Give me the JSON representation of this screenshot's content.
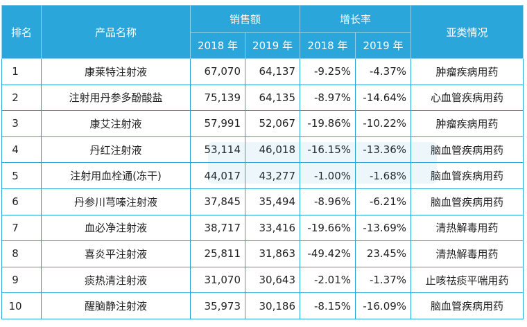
{
  "header": {
    "rank": "排名",
    "name": "产品名称",
    "sales": "销售额",
    "growth": "增长率",
    "category": "亚类情况",
    "year2018": "2018 年",
    "year2019": "2019 年"
  },
  "rows": [
    {
      "rank": "1",
      "name": "康莱特注射液",
      "s2018": "67,070",
      "s2019": "64,137",
      "g2018": "-9.25%",
      "g2019": "-4.37%",
      "category": "肿瘤疾病用药"
    },
    {
      "rank": "2",
      "name": "注射用丹参多酚酸盐",
      "s2018": "75,139",
      "s2019": "64,135",
      "g2018": "-8.97%",
      "g2019": "-14.64%",
      "category": "心血管疾病用药"
    },
    {
      "rank": "3",
      "name": "康艾注射液",
      "s2018": "57,991",
      "s2019": "52,067",
      "g2018": "-19.86%",
      "g2019": "-10.22%",
      "category": "肿瘤疾病用药"
    },
    {
      "rank": "4",
      "name": "丹红注射液",
      "s2018": "53,114",
      "s2019": "46,018",
      "g2018": "-16.15%",
      "g2019": "-13.36%",
      "category": "脑血管疾病用药"
    },
    {
      "rank": "5",
      "name": "注射用血栓通(冻干)",
      "s2018": "44,017",
      "s2019": "43,277",
      "g2018": "-1.00%",
      "g2019": "-1.68%",
      "category": "脑血管疾病用药"
    },
    {
      "rank": "6",
      "name": "丹参川芎嗪注射液",
      "s2018": "37,845",
      "s2019": "35,494",
      "g2018": "-8.96%",
      "g2019": "-6.21%",
      "category": "脑血管疾病用药"
    },
    {
      "rank": "7",
      "name": "血必净注射液",
      "s2018": "38,717",
      "s2019": "33,416",
      "g2018": "-19.66%",
      "g2019": "-13.69%",
      "category": "清热解毒用药"
    },
    {
      "rank": "8",
      "name": "喜炎平注射液",
      "s2018": "25,811",
      "s2019": "31,863",
      "g2018": "-49.42%",
      "g2019": "23.45%",
      "category": "清热解毒用药"
    },
    {
      "rank": "9",
      "name": "痰热清注射液",
      "s2018": "31,070",
      "s2019": "30,643",
      "g2018": "-2.01%",
      "g2019": "-1.37%",
      "category": "止咳祛痰平喘用药"
    },
    {
      "rank": "10",
      "name": "醒脑静注射液",
      "s2018": "35,973",
      "s2019": "30,186",
      "g2018": "-8.15%",
      "g2019": "-16.09%",
      "category": "脑血管疾病用药"
    }
  ],
  "colors": {
    "header_bg": "#2ba6da",
    "border": "#29a2d6",
    "text": "#222222"
  }
}
